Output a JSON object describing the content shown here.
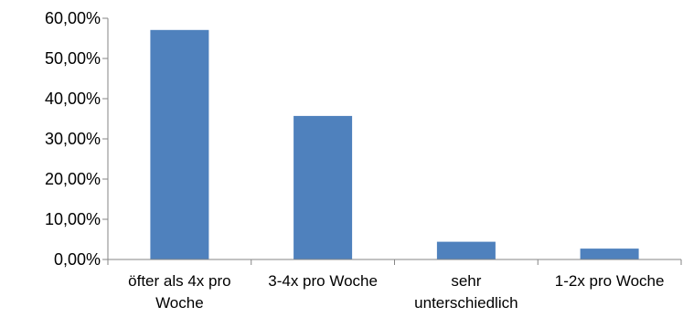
{
  "chart_data": {
    "type": "bar",
    "categories": [
      [
        "öfter als 4x pro",
        "Woche"
      ],
      [
        "3-4x pro Woche"
      ],
      [
        "sehr",
        "unterschiedlich"
      ],
      [
        "1-2x pro Woche"
      ]
    ],
    "values": [
      57.1,
      35.7,
      4.4,
      2.7
    ],
    "ylim": [
      0,
      60
    ],
    "yticks": [
      "0,00%",
      "10,00%",
      "20,00%",
      "30,00%",
      "40,00%",
      "50,00%",
      "60,00%"
    ],
    "grid": false,
    "title": "",
    "xlabel": "",
    "ylabel": "",
    "colors": {
      "bar": "#4F81BD",
      "axis": "#868686"
    }
  }
}
